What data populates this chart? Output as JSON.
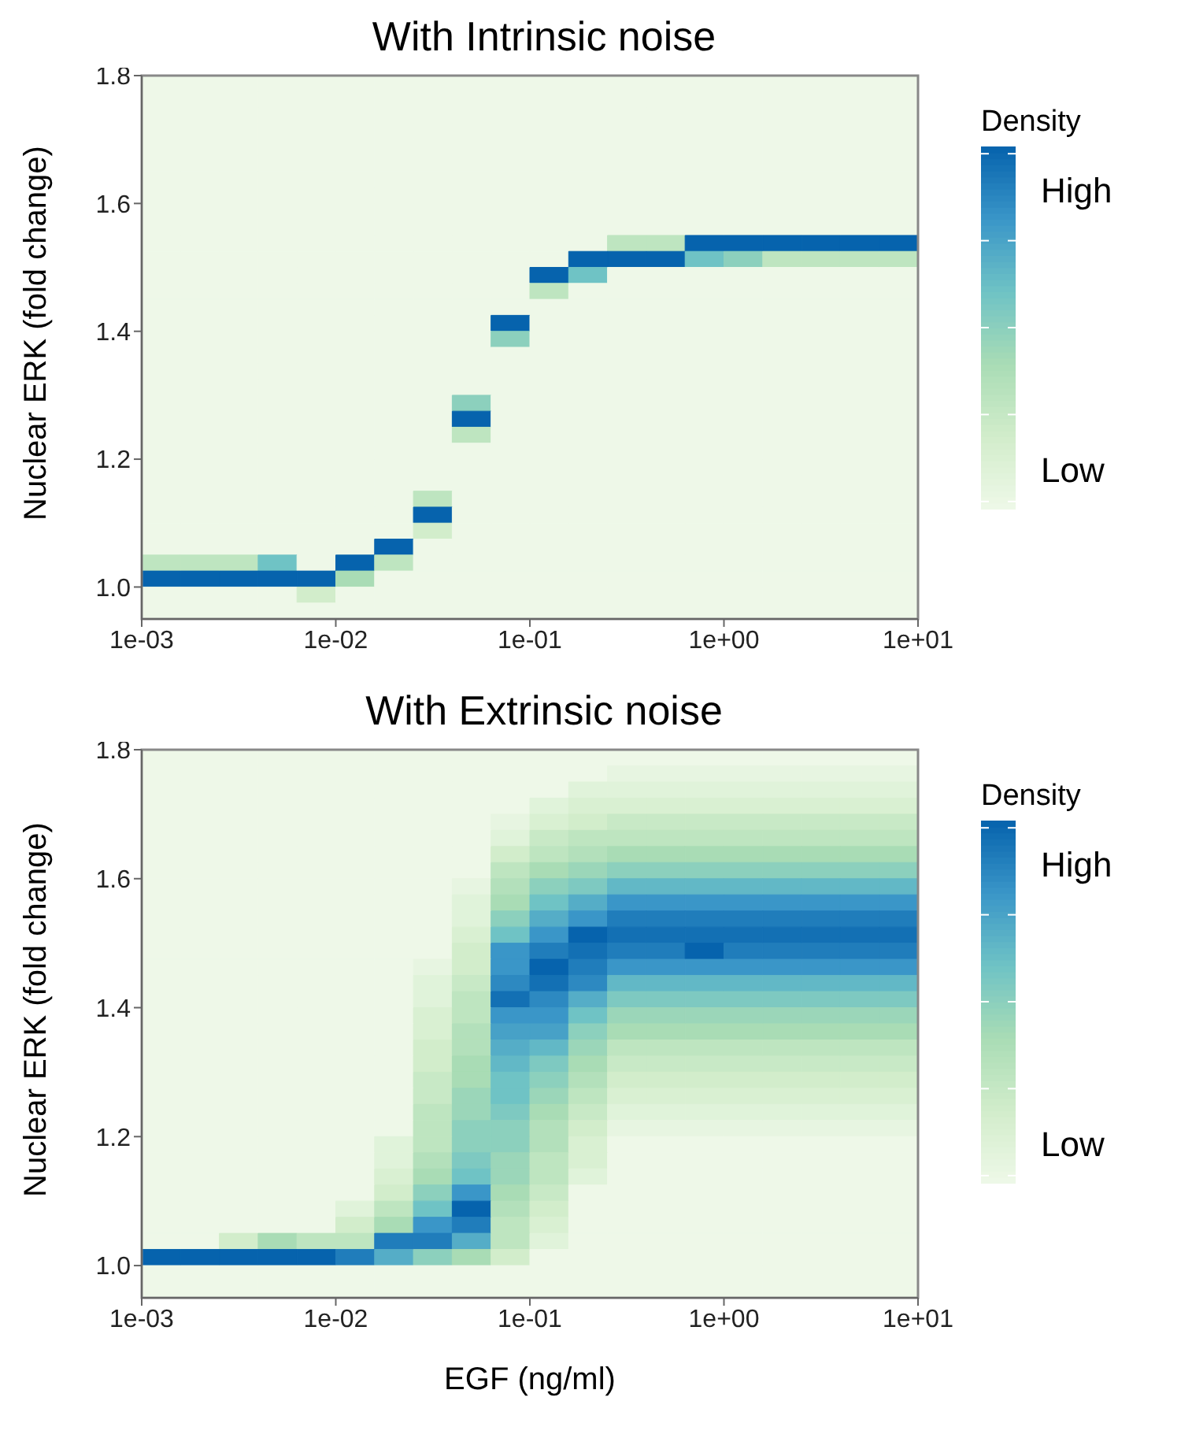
{
  "chart_data": [
    {
      "type": "heatmap",
      "title": "With Intrinsic noise",
      "ylabel": "Nuclear ERK (fold change)",
      "clabel": "Density",
      "log": "x",
      "xlim": [
        0.001,
        10
      ],
      "xticks": [
        {
          "value": 0.001,
          "label": "1e-03"
        },
        {
          "value": 0.01,
          "label": "1e-02"
        },
        {
          "value": 0.1,
          "label": "1e-01"
        },
        {
          "value": 1,
          "label": "1e+00"
        },
        {
          "value": 10,
          "label": "1e+01"
        }
      ],
      "ylim": [
        0.95,
        1.8
      ],
      "yticks": [
        {
          "value": 1,
          "label": "1.0"
        },
        {
          "value": 1.2,
          "label": "1.2"
        },
        {
          "value": 1.4,
          "label": "1.4"
        },
        {
          "value": 1.6,
          "label": "1.6"
        },
        {
          "value": 1.8,
          "label": "1.8"
        }
      ],
      "clim": [
        0,
        1
      ],
      "cticks": [
        {
          "value": 0.02,
          "label": null
        },
        {
          "value": 0.1,
          "label": "Low"
        },
        {
          "value": 0.26,
          "label": null
        },
        {
          "value": 0.5,
          "label": null
        },
        {
          "value": 0.74,
          "label": null
        },
        {
          "value": 0.87,
          "label": "High"
        },
        {
          "value": 0.98,
          "label": null
        }
      ],
      "cells": [
        [
          0,
          0,
          0,
          0,
          0,
          0,
          0,
          0,
          0,
          0,
          0,
          0,
          0,
          0,
          0,
          0,
          0,
          0,
          0,
          0
        ],
        [
          0,
          0,
          0,
          0,
          0,
          0,
          0,
          0,
          0,
          0,
          0,
          0,
          0,
          0,
          0,
          0,
          0,
          0,
          0,
          0
        ],
        [
          0,
          0,
          0,
          0,
          0,
          0,
          0,
          0,
          0,
          0,
          0,
          0,
          0,
          0,
          0,
          0,
          0,
          0,
          0,
          0
        ],
        [
          0,
          0,
          0,
          0,
          0,
          0,
          0,
          0,
          0,
          0,
          0,
          0,
          0,
          0,
          0,
          0,
          0,
          0,
          0,
          0
        ],
        [
          0,
          0,
          0,
          0,
          0,
          0,
          0,
          0,
          0,
          0,
          0,
          0,
          0,
          0,
          0,
          0,
          0,
          0,
          0,
          0
        ],
        [
          0,
          0,
          0,
          0,
          0,
          0,
          0,
          0,
          0,
          0,
          0,
          0,
          0,
          0,
          0,
          0,
          0,
          0,
          0,
          0
        ],
        [
          0,
          0,
          0,
          0,
          0,
          0,
          0,
          0,
          0,
          0,
          0,
          0,
          0,
          0,
          0,
          0,
          0,
          0,
          0,
          0
        ],
        [
          0,
          0,
          0,
          0,
          0,
          0,
          0,
          0,
          0,
          0,
          0,
          0,
          0,
          0,
          0,
          0,
          0,
          0,
          0,
          0
        ],
        [
          0,
          0,
          0,
          0,
          0,
          0,
          0,
          0,
          0,
          0,
          0,
          0,
          0,
          0,
          0,
          0,
          0,
          0,
          0,
          0
        ],
        [
          0,
          0,
          0,
          0,
          0,
          0,
          0,
          0,
          0,
          0,
          0,
          0,
          0,
          0,
          0,
          0,
          0,
          0,
          0,
          0
        ],
        [
          0,
          0,
          0,
          0,
          0,
          0,
          0,
          0,
          0,
          0,
          0,
          0,
          0.3,
          0.3,
          1,
          1,
          1,
          1,
          1,
          1
        ],
        [
          0,
          0,
          0,
          0,
          0,
          0,
          0,
          0,
          0,
          0,
          0,
          1,
          1,
          1,
          0.6,
          0.5,
          0.3,
          0.3,
          0.3,
          0.3
        ],
        [
          0,
          0,
          0,
          0,
          0,
          0,
          0,
          0,
          0,
          0,
          1,
          0.6,
          0,
          0,
          0,
          0,
          0,
          0,
          0,
          0
        ],
        [
          0,
          0,
          0,
          0,
          0,
          0,
          0,
          0,
          0,
          0,
          0.3,
          0,
          0,
          0,
          0,
          0,
          0,
          0,
          0,
          0
        ],
        [
          0,
          0,
          0,
          0,
          0,
          0,
          0,
          0,
          0,
          0,
          0,
          0,
          0,
          0,
          0,
          0,
          0,
          0,
          0,
          0
        ],
        [
          0,
          0,
          0,
          0,
          0,
          0,
          0,
          0,
          0,
          1,
          0,
          0,
          0,
          0,
          0,
          0,
          0,
          0,
          0,
          0
        ],
        [
          0,
          0,
          0,
          0,
          0,
          0,
          0,
          0,
          0,
          0.5,
          0,
          0,
          0,
          0,
          0,
          0,
          0,
          0,
          0,
          0
        ],
        [
          0,
          0,
          0,
          0,
          0,
          0,
          0,
          0,
          0,
          0,
          0,
          0,
          0,
          0,
          0,
          0,
          0,
          0,
          0,
          0
        ],
        [
          0,
          0,
          0,
          0,
          0,
          0,
          0,
          0,
          0,
          0,
          0,
          0,
          0,
          0,
          0,
          0,
          0,
          0,
          0,
          0
        ],
        [
          0,
          0,
          0,
          0,
          0,
          0,
          0,
          0,
          0,
          0,
          0,
          0,
          0,
          0,
          0,
          0,
          0,
          0,
          0,
          0
        ],
        [
          0,
          0,
          0,
          0,
          0,
          0,
          0,
          0,
          0.5,
          0,
          0,
          0,
          0,
          0,
          0,
          0,
          0,
          0,
          0,
          0
        ],
        [
          0,
          0,
          0,
          0,
          0,
          0,
          0,
          0,
          1,
          0,
          0,
          0,
          0,
          0,
          0,
          0,
          0,
          0,
          0,
          0
        ],
        [
          0,
          0,
          0,
          0,
          0,
          0,
          0,
          0,
          0.3,
          0,
          0,
          0,
          0,
          0,
          0,
          0,
          0,
          0,
          0,
          0
        ],
        [
          0,
          0,
          0,
          0,
          0,
          0,
          0,
          0,
          0,
          0,
          0,
          0,
          0,
          0,
          0,
          0,
          0,
          0,
          0,
          0
        ],
        [
          0,
          0,
          0,
          0,
          0,
          0,
          0,
          0,
          0,
          0,
          0,
          0,
          0,
          0,
          0,
          0,
          0,
          0,
          0,
          0
        ],
        [
          0,
          0,
          0,
          0,
          0,
          0,
          0,
          0,
          0,
          0,
          0,
          0,
          0,
          0,
          0,
          0,
          0,
          0,
          0,
          0
        ],
        [
          0,
          0,
          0,
          0,
          0,
          0,
          0,
          0.3,
          0,
          0,
          0,
          0,
          0,
          0,
          0,
          0,
          0,
          0,
          0,
          0
        ],
        [
          0,
          0,
          0,
          0,
          0,
          0,
          0,
          1,
          0,
          0,
          0,
          0,
          0,
          0,
          0,
          0,
          0,
          0,
          0,
          0
        ],
        [
          0,
          0,
          0,
          0,
          0,
          0,
          0,
          0.2,
          0,
          0,
          0,
          0,
          0,
          0,
          0,
          0,
          0,
          0,
          0,
          0
        ],
        [
          0,
          0,
          0,
          0,
          0,
          0,
          1,
          0,
          0,
          0,
          0,
          0,
          0,
          0,
          0,
          0,
          0,
          0,
          0,
          0
        ],
        [
          0.3,
          0.3,
          0.3,
          0.6,
          0,
          1,
          0.3,
          0,
          0,
          0,
          0,
          0,
          0,
          0,
          0,
          0,
          0,
          0,
          0,
          0
        ],
        [
          1,
          1,
          1,
          1,
          1,
          0.4,
          0,
          0,
          0,
          0,
          0,
          0,
          0,
          0,
          0,
          0,
          0,
          0,
          0,
          0
        ],
        [
          0,
          0,
          0,
          0,
          0.2,
          0,
          0,
          0,
          0,
          0,
          0,
          0,
          0,
          0,
          0,
          0,
          0,
          0,
          0,
          0
        ],
        [
          0,
          0,
          0,
          0,
          0,
          0,
          0,
          0,
          0,
          0,
          0,
          0,
          0,
          0,
          0,
          0,
          0,
          0,
          0,
          0
        ]
      ]
    },
    {
      "type": "heatmap",
      "title": "With Extrinsic noise",
      "xlabel": "EGF (ng/ml)",
      "ylabel": "Nuclear ERK (fold change)",
      "clabel": "Density",
      "log": "x",
      "xlim": [
        0.001,
        10
      ],
      "xticks": [
        {
          "value": 0.001,
          "label": "1e-03"
        },
        {
          "value": 0.01,
          "label": "1e-02"
        },
        {
          "value": 0.1,
          "label": "1e-01"
        },
        {
          "value": 1,
          "label": "1e+00"
        },
        {
          "value": 10,
          "label": "1e+01"
        }
      ],
      "ylim": [
        0.95,
        1.8
      ],
      "yticks": [
        {
          "value": 1,
          "label": "1.0"
        },
        {
          "value": 1.2,
          "label": "1.2"
        },
        {
          "value": 1.4,
          "label": "1.4"
        },
        {
          "value": 1.6,
          "label": "1.6"
        },
        {
          "value": 1.8,
          "label": "1.8"
        }
      ],
      "clim": [
        0,
        1
      ],
      "cticks": [
        {
          "value": 0.02,
          "label": null
        },
        {
          "value": 0.1,
          "label": "Low"
        },
        {
          "value": 0.26,
          "label": null
        },
        {
          "value": 0.5,
          "label": null
        },
        {
          "value": 0.74,
          "label": null
        },
        {
          "value": 0.87,
          "label": "High"
        },
        {
          "value": 0.98,
          "label": null
        }
      ],
      "cells": [
        [
          0,
          0,
          0,
          0,
          0,
          0,
          0,
          0,
          0,
          0,
          0,
          0,
          0,
          0,
          0,
          0,
          0,
          0,
          0,
          0
        ],
        [
          0,
          0,
          0,
          0,
          0,
          0,
          0,
          0,
          0,
          0,
          0,
          0,
          0.05,
          0.05,
          0.05,
          0.05,
          0.05,
          0.05,
          0.05,
          0.05
        ],
        [
          0,
          0,
          0,
          0,
          0,
          0,
          0,
          0,
          0,
          0,
          0,
          0.1,
          0.1,
          0.1,
          0.1,
          0.1,
          0.1,
          0.1,
          0.1,
          0.1
        ],
        [
          0,
          0,
          0,
          0,
          0,
          0,
          0,
          0,
          0,
          0,
          0.1,
          0.15,
          0.15,
          0.15,
          0.15,
          0.15,
          0.15,
          0.15,
          0.15,
          0.15
        ],
        [
          0,
          0,
          0,
          0,
          0,
          0,
          0,
          0,
          0,
          0.05,
          0.15,
          0.2,
          0.25,
          0.25,
          0.25,
          0.25,
          0.25,
          0.25,
          0.25,
          0.25
        ],
        [
          0,
          0,
          0,
          0,
          0,
          0,
          0,
          0,
          0,
          0.1,
          0.25,
          0.3,
          0.3,
          0.3,
          0.3,
          0.3,
          0.3,
          0.3,
          0.3,
          0.3
        ],
        [
          0,
          0,
          0,
          0,
          0,
          0,
          0,
          0,
          0,
          0.2,
          0.3,
          0.35,
          0.4,
          0.4,
          0.4,
          0.4,
          0.4,
          0.4,
          0.4,
          0.4
        ],
        [
          0,
          0,
          0,
          0,
          0,
          0,
          0,
          0,
          0,
          0.3,
          0.4,
          0.45,
          0.5,
          0.5,
          0.5,
          0.5,
          0.5,
          0.5,
          0.5,
          0.5
        ],
        [
          0,
          0,
          0,
          0,
          0,
          0,
          0,
          0,
          0.05,
          0.35,
          0.5,
          0.55,
          0.65,
          0.65,
          0.65,
          0.65,
          0.65,
          0.65,
          0.65,
          0.65
        ],
        [
          0,
          0,
          0,
          0,
          0,
          0,
          0,
          0,
          0.1,
          0.4,
          0.6,
          0.7,
          0.8,
          0.8,
          0.8,
          0.8,
          0.8,
          0.8,
          0.8,
          0.8
        ],
        [
          0,
          0,
          0,
          0,
          0,
          0,
          0,
          0,
          0.1,
          0.5,
          0.7,
          0.8,
          0.9,
          0.9,
          0.9,
          0.9,
          0.9,
          0.9,
          0.9,
          0.9
        ],
        [
          0,
          0,
          0,
          0,
          0,
          0,
          0,
          0,
          0.15,
          0.6,
          0.8,
          1,
          0.95,
          0.95,
          0.95,
          0.95,
          0.95,
          0.95,
          0.95,
          0.95
        ],
        [
          0,
          0,
          0,
          0,
          0,
          0,
          0,
          0,
          0.2,
          0.8,
          0.9,
          0.95,
          0.9,
          0.9,
          1,
          0.9,
          0.9,
          0.9,
          0.9,
          0.9
        ],
        [
          0,
          0,
          0,
          0,
          0,
          0,
          0,
          0.05,
          0.2,
          0.8,
          1,
          0.9,
          0.8,
          0.8,
          0.8,
          0.8,
          0.8,
          0.8,
          0.8,
          0.8
        ],
        [
          0,
          0,
          0,
          0,
          0,
          0,
          0,
          0.1,
          0.25,
          0.85,
          0.95,
          0.85,
          0.65,
          0.65,
          0.65,
          0.65,
          0.65,
          0.65,
          0.65,
          0.65
        ],
        [
          0,
          0,
          0,
          0,
          0,
          0,
          0,
          0.1,
          0.3,
          0.95,
          0.85,
          0.7,
          0.55,
          0.55,
          0.55,
          0.55,
          0.55,
          0.55,
          0.55,
          0.55
        ],
        [
          0,
          0,
          0,
          0,
          0,
          0,
          0,
          0.15,
          0.3,
          0.8,
          0.8,
          0.6,
          0.45,
          0.45,
          0.45,
          0.45,
          0.45,
          0.45,
          0.45,
          0.45
        ],
        [
          0,
          0,
          0,
          0,
          0,
          0,
          0,
          0.15,
          0.35,
          0.75,
          0.75,
          0.5,
          0.4,
          0.4,
          0.4,
          0.4,
          0.4,
          0.4,
          0.4,
          0.4
        ],
        [
          0,
          0,
          0,
          0,
          0,
          0,
          0,
          0.2,
          0.35,
          0.7,
          0.65,
          0.45,
          0.3,
          0.3,
          0.3,
          0.3,
          0.3,
          0.3,
          0.3,
          0.3
        ],
        [
          0,
          0,
          0,
          0,
          0,
          0,
          0,
          0.2,
          0.4,
          0.65,
          0.55,
          0.4,
          0.25,
          0.25,
          0.25,
          0.25,
          0.25,
          0.25,
          0.25,
          0.25
        ],
        [
          0,
          0,
          0,
          0,
          0,
          0,
          0,
          0.25,
          0.4,
          0.6,
          0.5,
          0.35,
          0.2,
          0.2,
          0.2,
          0.2,
          0.2,
          0.2,
          0.2,
          0.2
        ],
        [
          0,
          0,
          0,
          0,
          0,
          0,
          0,
          0.25,
          0.45,
          0.6,
          0.45,
          0.3,
          0.15,
          0.15,
          0.15,
          0.15,
          0.15,
          0.15,
          0.15,
          0.15
        ],
        [
          0,
          0,
          0,
          0,
          0,
          0,
          0,
          0.3,
          0.45,
          0.55,
          0.4,
          0.25,
          0.1,
          0.1,
          0.1,
          0.1,
          0.1,
          0.1,
          0.1,
          0.1
        ],
        [
          0,
          0,
          0,
          0,
          0,
          0,
          0,
          0.3,
          0.5,
          0.5,
          0.35,
          0.2,
          0.05,
          0.05,
          0.05,
          0.05,
          0.05,
          0.05,
          0.05,
          0.05
        ],
        [
          0,
          0,
          0,
          0,
          0,
          0,
          0.1,
          0.3,
          0.5,
          0.5,
          0.35,
          0.15,
          0,
          0,
          0,
          0,
          0,
          0,
          0,
          0
        ],
        [
          0,
          0,
          0,
          0,
          0,
          0,
          0.1,
          0.35,
          0.55,
          0.45,
          0.3,
          0.15,
          0,
          0,
          0,
          0,
          0,
          0,
          0,
          0
        ],
        [
          0,
          0,
          0,
          0,
          0,
          0,
          0.15,
          0.4,
          0.6,
          0.45,
          0.3,
          0.1,
          0,
          0,
          0,
          0,
          0,
          0,
          0,
          0
        ],
        [
          0,
          0,
          0,
          0,
          0,
          0,
          0.2,
          0.5,
          0.8,
          0.4,
          0.25,
          0,
          0,
          0,
          0,
          0,
          0,
          0,
          0,
          0
        ],
        [
          0,
          0,
          0,
          0,
          0,
          0.1,
          0.3,
          0.6,
          1,
          0.35,
          0.2,
          0,
          0,
          0,
          0,
          0,
          0,
          0,
          0,
          0
        ],
        [
          0,
          0,
          0,
          0,
          0,
          0.2,
          0.4,
          0.8,
          0.9,
          0.3,
          0.15,
          0,
          0,
          0,
          0,
          0,
          0,
          0,
          0,
          0
        ],
        [
          0,
          0,
          0.2,
          0.4,
          0.3,
          0.3,
          0.9,
          0.9,
          0.7,
          0.3,
          0.1,
          0,
          0,
          0,
          0,
          0,
          0,
          0,
          0,
          0
        ],
        [
          1,
          1,
          1,
          1,
          1,
          0.9,
          0.7,
          0.5,
          0.4,
          0.2,
          0,
          0,
          0,
          0,
          0,
          0,
          0,
          0,
          0,
          0
        ],
        [
          0,
          0,
          0,
          0,
          0,
          0,
          0,
          0,
          0,
          0,
          0,
          0,
          0,
          0,
          0,
          0,
          0,
          0,
          0,
          0
        ],
        [
          0,
          0,
          0,
          0,
          0,
          0,
          0,
          0,
          0,
          0,
          0,
          0,
          0,
          0,
          0,
          0,
          0,
          0,
          0,
          0
        ]
      ]
    }
  ]
}
